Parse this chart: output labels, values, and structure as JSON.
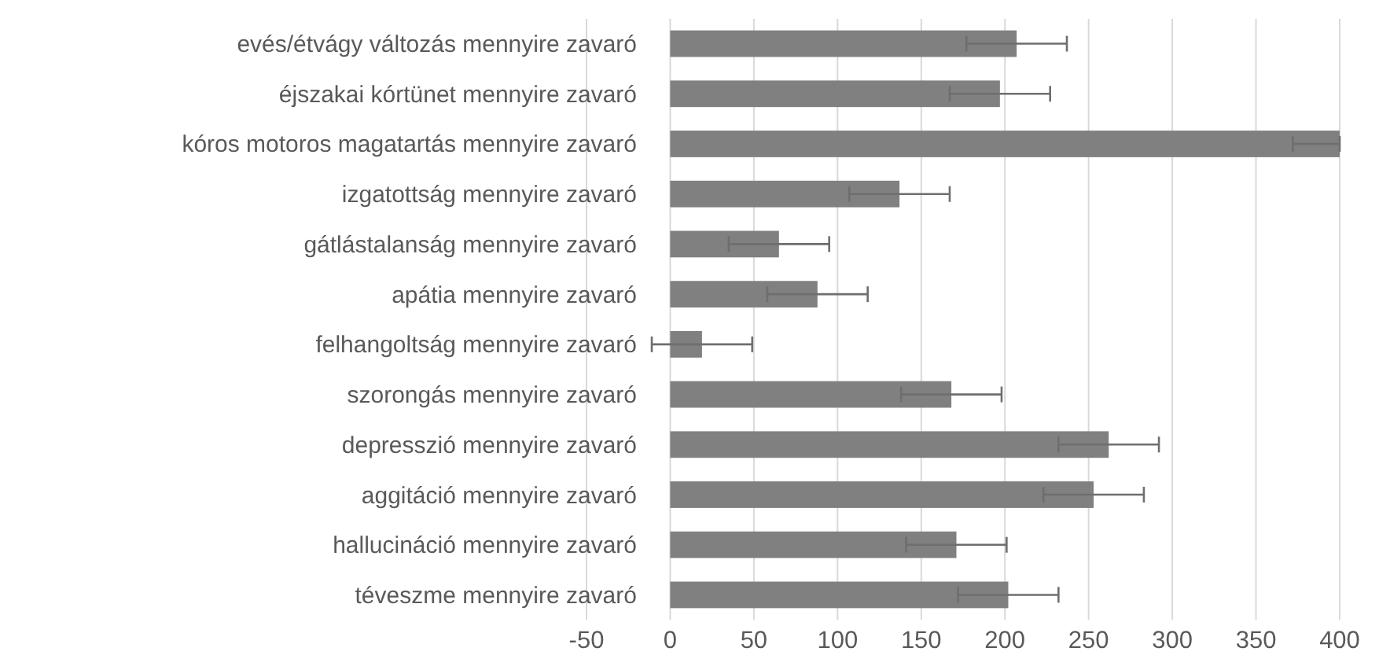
{
  "chart_data": {
    "type": "bar",
    "orientation": "horizontal",
    "categories": [
      "evés/étvágy változás mennyire zavaró",
      "éjszakai kórtünet mennyire zavaró",
      "kóros motoros magatartás mennyire zavaró",
      "izgatottság mennyire zavaró",
      "gátlástalanság mennyire zavaró",
      "apátia mennyire zavaró",
      "felhangoltság mennyire zavaró",
      "szorongás mennyire zavaró",
      "depresszió mennyire zavaró",
      "aggitáció mennyire zavaró",
      "hallucináció mennyire zavaró",
      "téveszme mennyire zavaró"
    ],
    "values": [
      207,
      197,
      400,
      137,
      65,
      88,
      19,
      168,
      262,
      253,
      171,
      202
    ],
    "errors": [
      30,
      30,
      [
        372,
        400
      ],
      30,
      30,
      30,
      30,
      30,
      30,
      30,
      30,
      30
    ],
    "color": "#808080",
    "xlim": [
      -50,
      400
    ],
    "xticks": [
      -50,
      0,
      50,
      100,
      150,
      200,
      250,
      300,
      350,
      400
    ],
    "grid": "x"
  }
}
